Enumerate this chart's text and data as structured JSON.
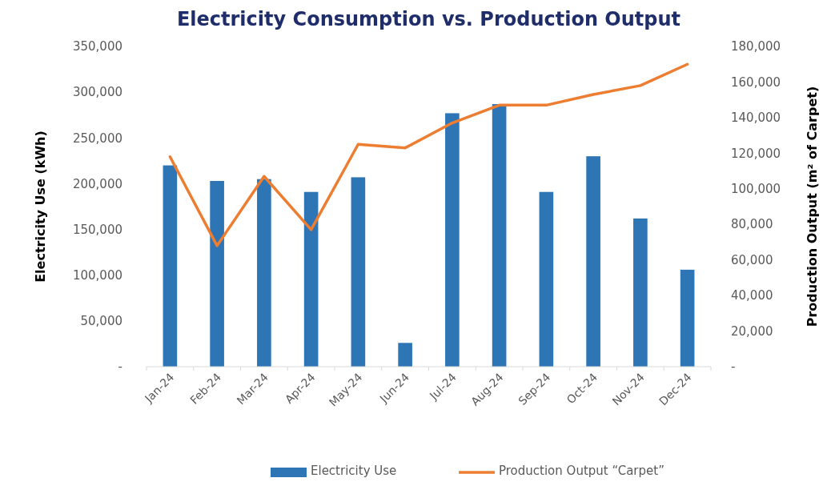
{
  "chart_data": {
    "type": "bar",
    "title": "Electricity Consumption vs. Production Output",
    "ylabel": "Electricity Use (kWh)",
    "y2label": "Production Output (m² of Carpet)",
    "categories": [
      "Jan-24",
      "Feb-24",
      "Mar-24",
      "Apr-24",
      "May-24",
      "Jun-24",
      "Jul-24",
      "Aug-24",
      "Sep-24",
      "Oct-24",
      "Nov-24",
      "Dec-24"
    ],
    "series": [
      {
        "name": "Electricity Use",
        "color": "#2e75b6",
        "values": [
          220000,
          203000,
          205000,
          191000,
          207000,
          26000,
          277000,
          287000,
          191000,
          230000,
          162000,
          106000
        ]
      },
      {
        "name": "Production Output “Carpet”",
        "type": "line",
        "axis": "y2",
        "color": "#ed7d31",
        "values": [
          118000,
          68000,
          107000,
          77000,
          125000,
          123000,
          137000,
          147000,
          147000,
          153000,
          158000,
          170000
        ]
      }
    ],
    "ylim": [
      0,
      350000
    ],
    "yticks": [
      {
        "value": 0,
        "label": "-"
      },
      {
        "value": 50000,
        "label": "50,000"
      },
      {
        "value": 100000,
        "label": "100,000"
      },
      {
        "value": 150000,
        "label": "150,000"
      },
      {
        "value": 200000,
        "label": "200,000"
      },
      {
        "value": 250000,
        "label": "250,000"
      },
      {
        "value": 300000,
        "label": "300,000"
      },
      {
        "value": 350000,
        "label": "350,000"
      }
    ],
    "y2lim": [
      0,
      180000
    ],
    "y2ticks": [
      {
        "value": 0,
        "label": "-"
      },
      {
        "value": 20000,
        "label": "20,000"
      },
      {
        "value": 40000,
        "label": "40,000"
      },
      {
        "value": 60000,
        "label": "60,000"
      },
      {
        "value": 80000,
        "label": "80,000"
      },
      {
        "value": 100000,
        "label": "100,000"
      },
      {
        "value": 120000,
        "label": "120,000"
      },
      {
        "value": 140000,
        "label": "140,000"
      },
      {
        "value": 160000,
        "label": "160,000"
      },
      {
        "value": 180000,
        "label": "180,000"
      }
    ],
    "grid": false,
    "legend": "bottom",
    "marker": "none",
    "line_style": "solid"
  }
}
